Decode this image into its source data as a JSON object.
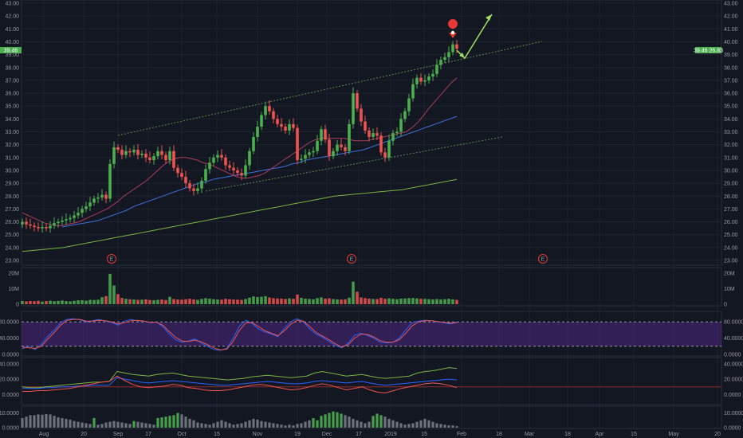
{
  "colors": {
    "background": "#131722",
    "grid": "#1e222d",
    "up": "#4caf50",
    "down": "#ef5350",
    "sma_short": "#ab3b5e",
    "sma_mid": "#3f6fd8",
    "sma_long": "#7cb342",
    "channel": "#6b8f5a",
    "arrow": "#9be060",
    "marker": "#e53935",
    "stoch_band": "#4a2780",
    "stoch_k": "#2962ff",
    "stoch_d": "#ef5350",
    "ind3_a": "#7cb342",
    "ind3_b": "#2962ff",
    "ind3_c": "#ef5350",
    "price_badge": "#4caf50"
  },
  "price_badges": {
    "left": "39.46",
    "right": "39.46 26.83"
  },
  "chart_data": [
    {
      "type": "candlestick",
      "title": "",
      "x_tick_labels": [
        "Aug",
        "20",
        "Sep",
        "17",
        "Oct",
        "15",
        "Nov",
        "19",
        "Dec",
        "17",
        "2019",
        "15",
        "Feb",
        "18",
        "Mar",
        "18",
        "Apr",
        "15",
        "May",
        "20"
      ],
      "ylim": [
        23.0,
        43.0
      ],
      "y_tick_labels": [
        "43.00",
        "42.00",
        "41.00",
        "40.00",
        "39.00",
        "38.00",
        "37.00",
        "36.00",
        "35.00",
        "34.00",
        "33.00",
        "32.00",
        "31.00",
        "30.00",
        "29.00",
        "28.00",
        "27.00",
        "26.00",
        "25.00",
        "24.00",
        "23.00"
      ],
      "last_price": 39.46,
      "series_close": [
        26.0,
        25.8,
        25.7,
        25.6,
        25.5,
        25.6,
        25.5,
        25.7,
        25.9,
        26.0,
        26.1,
        26.2,
        26.3,
        26.5,
        26.7,
        27.0,
        27.2,
        27.5,
        27.8,
        27.9,
        28.1,
        27.8,
        30.5,
        31.8,
        31.6,
        31.2,
        31.5,
        31.4,
        31.6,
        31.2,
        31.3,
        31.0,
        30.8,
        31.1,
        31.5,
        31.2,
        30.8,
        31.5,
        30.2,
        29.8,
        29.5,
        29.0,
        28.6,
        28.4,
        28.6,
        29.2,
        30.1,
        30.6,
        31.0,
        31.2,
        31.0,
        30.4,
        30.2,
        30.0,
        29.8,
        29.6,
        30.4,
        31.5,
        32.6,
        33.4,
        34.3,
        35.0,
        34.6,
        34.0,
        33.6,
        33.4,
        33.1,
        33.6,
        33.3,
        30.8,
        30.9,
        31.2,
        31.4,
        31.5,
        32.3,
        33.2,
        32.4,
        31.1,
        31.5,
        32.0,
        31.8,
        31.5,
        33.6,
        36.0,
        34.8,
        33.8,
        33.1,
        32.6,
        32.9,
        32.7,
        31.4,
        31.0,
        32.3,
        32.9,
        33.0,
        34.0,
        34.6,
        35.6,
        36.7,
        37.2,
        36.9,
        37.0,
        37.3,
        37.5,
        38.2,
        38.6,
        38.8,
        39.2,
        39.8,
        39.46
      ],
      "sma_short": [
        26.7,
        26.5,
        26.3,
        26.1,
        25.9,
        25.8,
        25.7,
        25.7,
        25.8,
        25.9,
        26.0,
        26.2,
        26.4,
        26.6,
        26.8,
        27.0,
        27.3,
        27.6,
        28.0,
        28.3,
        28.6,
        28.9,
        29.2,
        29.6,
        30.0,
        30.4,
        30.7,
        30.9,
        31.0,
        31.0,
        30.9,
        30.8,
        30.6,
        30.5,
        30.3,
        30.1,
        29.9,
        29.7,
        29.5,
        29.4,
        29.4,
        29.5,
        29.6,
        29.8,
        30.1,
        30.4,
        30.7,
        31.0,
        31.3,
        31.6,
        31.9,
        32.2,
        32.4,
        32.5,
        32.5,
        32.5,
        32.5,
        32.5,
        32.4,
        32.3,
        32.3,
        32.3,
        32.4,
        32.5,
        32.6,
        32.7,
        32.8,
        32.9,
        33.0,
        33.3,
        33.7,
        34.2,
        34.8,
        35.3,
        35.8,
        36.3,
        36.8,
        37.2
      ],
      "sma_short_start": 0,
      "sma_mid": [
        25.6,
        25.7,
        25.8,
        25.9,
        26.0,
        26.1,
        26.3,
        26.5,
        26.7,
        26.9,
        27.2,
        27.4,
        27.6,
        27.8,
        28.0,
        28.2,
        28.4,
        28.6,
        28.8,
        29.0,
        29.1,
        29.3,
        29.4,
        29.5,
        29.6,
        29.7,
        29.8,
        29.9,
        30.0,
        30.1,
        30.2,
        30.3,
        30.5,
        30.6,
        30.8,
        30.9,
        31.0,
        31.1,
        31.2,
        31.3,
        31.4,
        31.5,
        31.6,
        31.8,
        32.0,
        32.2,
        32.4,
        32.6,
        32.8,
        33.0,
        33.2,
        33.4,
        33.6,
        33.8,
        34.0,
        34.2
      ],
      "sma_mid_start": 10,
      "sma_long": [
        23.7,
        23.8,
        23.9,
        24.0,
        24.2,
        24.4,
        24.6,
        24.8,
        25.0,
        25.2,
        25.4,
        25.6,
        25.8,
        26.0,
        26.2,
        26.4,
        26.6,
        26.8,
        27.0,
        27.2,
        27.4,
        27.6,
        27.8,
        28.0,
        28.1,
        28.2,
        28.3,
        28.4,
        28.5,
        28.7,
        28.9,
        29.1,
        29.3
      ],
      "sma_long_start": 0,
      "event_labels": [
        "E",
        "E",
        "E"
      ]
    },
    {
      "type": "bar",
      "title": "",
      "y_tick_labels": [
        "20M",
        "10M",
        "0"
      ],
      "ylim": [
        0,
        22
      ],
      "unit": "M",
      "values": [
        2.1,
        1.8,
        2.0,
        1.9,
        2.2,
        1.7,
        2.0,
        2.3,
        1.9,
        2.1,
        2.4,
        2.0,
        1.8,
        2.2,
        2.5,
        2.6,
        2.3,
        2.8,
        2.7,
        2.9,
        4.5,
        5.2,
        19.5,
        12.0,
        6.5,
        4.0,
        3.5,
        3.2,
        3.0,
        2.8,
        2.9,
        3.1,
        2.7,
        2.6,
        2.8,
        3.0,
        2.7,
        4.8,
        3.3,
        3.0,
        2.9,
        3.2,
        3.5,
        3.1,
        2.8,
        3.4,
        3.9,
        3.6,
        3.2,
        3.0,
        2.9,
        3.5,
        3.2,
        3.0,
        2.9,
        2.8,
        3.4,
        4.2,
        5.0,
        4.6,
        4.8,
        5.2,
        4.3,
        3.9,
        3.7,
        3.6,
        3.4,
        3.8,
        3.5,
        6.2,
        4.1,
        3.6,
        3.4,
        3.2,
        3.9,
        4.4,
        3.6,
        3.8,
        3.3,
        3.1,
        3.0,
        3.2,
        4.2,
        14.5,
        8.0,
        4.3,
        3.9,
        3.6,
        3.4,
        3.3,
        4.1,
        3.5,
        3.8,
        3.5,
        3.2,
        3.6,
        3.7,
        3.9,
        4.0,
        3.8,
        3.5,
        3.4,
        3.2,
        3.1,
        3.3,
        3.0,
        3.2,
        3.5,
        3.1,
        2.8
      ]
    },
    {
      "type": "line",
      "title": "",
      "y_tick_labels": [
        "80.0000",
        "40.0000",
        "0.0000"
      ],
      "ylim": [
        0,
        100
      ],
      "band": [
        20,
        80
      ],
      "series": [
        {
          "values": [
            14,
            20,
            12,
            25,
            45,
            60,
            78,
            86,
            88,
            85,
            80,
            83,
            86,
            82,
            78,
            72,
            82,
            86,
            83,
            82,
            78,
            80,
            68,
            50,
            36,
            30,
            33,
            38,
            28,
            20,
            12,
            10,
            15,
            40,
            70,
            84,
            76,
            62,
            55,
            50,
            44,
            64,
            80,
            88,
            80,
            62,
            50,
            42,
            32,
            22,
            16,
            28,
            47,
            52,
            47,
            40,
            30,
            28,
            30,
            40,
            60,
            78,
            82,
            84,
            83,
            80,
            78,
            75,
            80
          ]
        },
        {
          "values": [
            18,
            16,
            15,
            20,
            38,
            54,
            72,
            84,
            86,
            86,
            82,
            82,
            84,
            83,
            80,
            75,
            78,
            83,
            84,
            82,
            79,
            79,
            72,
            56,
            42,
            33,
            32,
            35,
            31,
            24,
            16,
            11,
            13,
            32,
            60,
            78,
            78,
            68,
            58,
            52,
            46,
            58,
            74,
            84,
            82,
            68,
            54,
            45,
            36,
            26,
            18,
            24,
            40,
            50,
            49,
            43,
            34,
            30,
            30,
            36,
            52,
            70,
            80,
            83,
            83,
            81,
            79,
            77,
            78
          ]
        }
      ]
    },
    {
      "type": "line",
      "title": "",
      "y_tick_labels": [
        "40.0000",
        "20.0000",
        "0.0000"
      ],
      "ylim": [
        -10,
        45
      ],
      "series": [
        {
          "values": [
            10,
            9,
            9,
            10,
            11,
            12,
            13,
            14,
            15,
            16,
            16,
            17,
            30,
            28,
            26,
            25,
            24,
            26,
            27,
            28,
            26,
            24,
            23,
            22,
            21,
            20,
            19,
            20,
            21,
            23,
            24,
            25,
            24,
            23,
            22,
            23,
            24,
            28,
            30,
            28,
            26,
            24,
            25,
            26,
            24,
            22,
            21,
            22,
            23,
            24,
            28,
            30,
            31,
            33,
            35,
            34
          ]
        },
        {
          "values": [
            8,
            8,
            8,
            9,
            9,
            10,
            10,
            11,
            11,
            12,
            12,
            12,
            22,
            20,
            18,
            16,
            15,
            16,
            17,
            18,
            17,
            16,
            15,
            14,
            13,
            12,
            12,
            13,
            14,
            15,
            16,
            17,
            16,
            15,
            14,
            14,
            15,
            17,
            18,
            17,
            16,
            15,
            16,
            17,
            15,
            13,
            12,
            13,
            14,
            15,
            16,
            17,
            18,
            19,
            20,
            19
          ]
        },
        {
          "values": [
            4,
            4,
            5,
            5,
            6,
            7,
            8,
            10,
            12,
            14,
            16,
            17,
            24,
            18,
            13,
            10,
            9,
            10,
            11,
            13,
            12,
            9,
            8,
            6,
            5,
            5,
            6,
            8,
            10,
            12,
            13,
            12,
            10,
            8,
            6,
            7,
            9,
            12,
            14,
            12,
            9,
            6,
            8,
            10,
            6,
            3,
            2,
            5,
            8,
            10,
            12,
            14,
            15,
            14,
            12,
            9
          ]
        }
      ]
    },
    {
      "type": "bar",
      "title": "",
      "y_tick_labels": [
        "10.0000",
        "0.0000"
      ],
      "ylim": [
        0,
        13
      ],
      "values": [
        6.5,
        7.5,
        8.5,
        8.5,
        9.0,
        8.8,
        9.2,
        9.0,
        8.0,
        7.0,
        6.5,
        6.0,
        5.5,
        4.5,
        4.0,
        3.5,
        3.0,
        2.5,
        6.5,
        2.0,
        2.5,
        3.5,
        4.0,
        4.5,
        4.0,
        3.5,
        3.0,
        2.5,
        4.5,
        4.0,
        3.5,
        3.0,
        2.5,
        2.0,
        6.5,
        7.0,
        7.5,
        8.0,
        8.5,
        10.0,
        9.0,
        7.5,
        6.0,
        5.0,
        3.5,
        3.0,
        2.5,
        2.0,
        3.0,
        4.0,
        5.0,
        4.0,
        3.0,
        2.0,
        2.5,
        3.0,
        4.0,
        5.0,
        6.0,
        5.5,
        4.5,
        4.0,
        3.5,
        3.0,
        2.5,
        2.0,
        1.5,
        2.0,
        1.5,
        2.5,
        3.0,
        4.0,
        5.0,
        6.5,
        5.0,
        8.0,
        9.0,
        10.0,
        11.0,
        10.5,
        9.5,
        8.5,
        7.5,
        6.0,
        5.0,
        4.0,
        3.0,
        4.0,
        8.0,
        9.5,
        8.5,
        7.5,
        6.0,
        5.0,
        4.0,
        3.0,
        2.0,
        2.5,
        3.0,
        4.0,
        5.0,
        6.0,
        5.0,
        4.0,
        3.0,
        2.5,
        2.0,
        1.5,
        1.5,
        1.0
      ],
      "green_indexes": [
        18,
        28,
        34,
        35,
        36,
        37,
        38,
        39,
        73,
        74,
        75,
        76,
        77,
        78,
        79,
        80,
        88,
        89,
        90
      ]
    }
  ]
}
